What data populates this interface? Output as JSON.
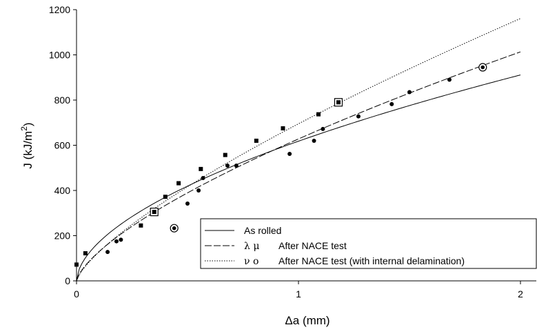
{
  "chart_data": {
    "type": "scatter",
    "xlabel_prefix": "Δa",
    "xlabel_unit": "(mm)",
    "ylabel_main": "J (kJ/m",
    "ylabel_sup": "2",
    "ylabel_close": ")",
    "xlim": [
      0,
      2.1
    ],
    "ylim": [
      0,
      1200
    ],
    "x_ticks": [
      0,
      1,
      2
    ],
    "x_tick_labels": [
      "0",
      "1",
      "2"
    ],
    "y_ticks": [
      0,
      200,
      400,
      600,
      800,
      1000,
      1200
    ],
    "y_tick_labels": [
      "0",
      "200",
      "400",
      "600",
      "800",
      "1000",
      "1200"
    ],
    "grid": false,
    "legend_position": "bottom-right",
    "series": [
      {
        "name": "As rolled",
        "symbols": "",
        "line_style": "solid",
        "curve": {
          "a": 618,
          "b": 0.56
        },
        "curve_x_max": 2.0,
        "points": []
      },
      {
        "name": "After NACE test",
        "symbols": "λ μ",
        "line_style": "dashed",
        "curve": {
          "a": 628,
          "b": 0.69
        },
        "curve_x_max": 2.0,
        "marker": "circle",
        "points": [
          [
            0.0,
            72
          ],
          [
            0.14,
            128
          ],
          [
            0.18,
            175
          ],
          [
            0.2,
            182
          ],
          [
            0.5,
            342
          ],
          [
            0.55,
            400
          ],
          [
            0.57,
            455
          ],
          [
            0.68,
            510
          ],
          [
            0.72,
            510
          ],
          [
            0.96,
            562
          ],
          [
            1.07,
            620
          ],
          [
            1.11,
            672
          ],
          [
            1.27,
            728
          ],
          [
            1.42,
            782
          ],
          [
            1.5,
            835
          ],
          [
            1.68,
            890
          ]
        ],
        "highlighted_points": [
          [
            0.44,
            233
          ],
          [
            1.83,
            945
          ]
        ]
      },
      {
        "name": "After NACE test (with internal delamination)",
        "symbols": "ν ο",
        "line_style": "dotted",
        "curve": {
          "a": 695,
          "b": 0.74
        },
        "curve_x_max": 2.0,
        "marker": "square",
        "points": [
          [
            0.0,
            72
          ],
          [
            0.04,
            122
          ],
          [
            0.29,
            245
          ],
          [
            0.4,
            372
          ],
          [
            0.46,
            432
          ],
          [
            0.56,
            495
          ],
          [
            0.67,
            557
          ],
          [
            0.81,
            620
          ],
          [
            0.93,
            675
          ],
          [
            1.09,
            737
          ]
        ],
        "highlighted_points": [
          [
            0.35,
            305
          ],
          [
            1.18,
            790
          ]
        ]
      }
    ]
  }
}
